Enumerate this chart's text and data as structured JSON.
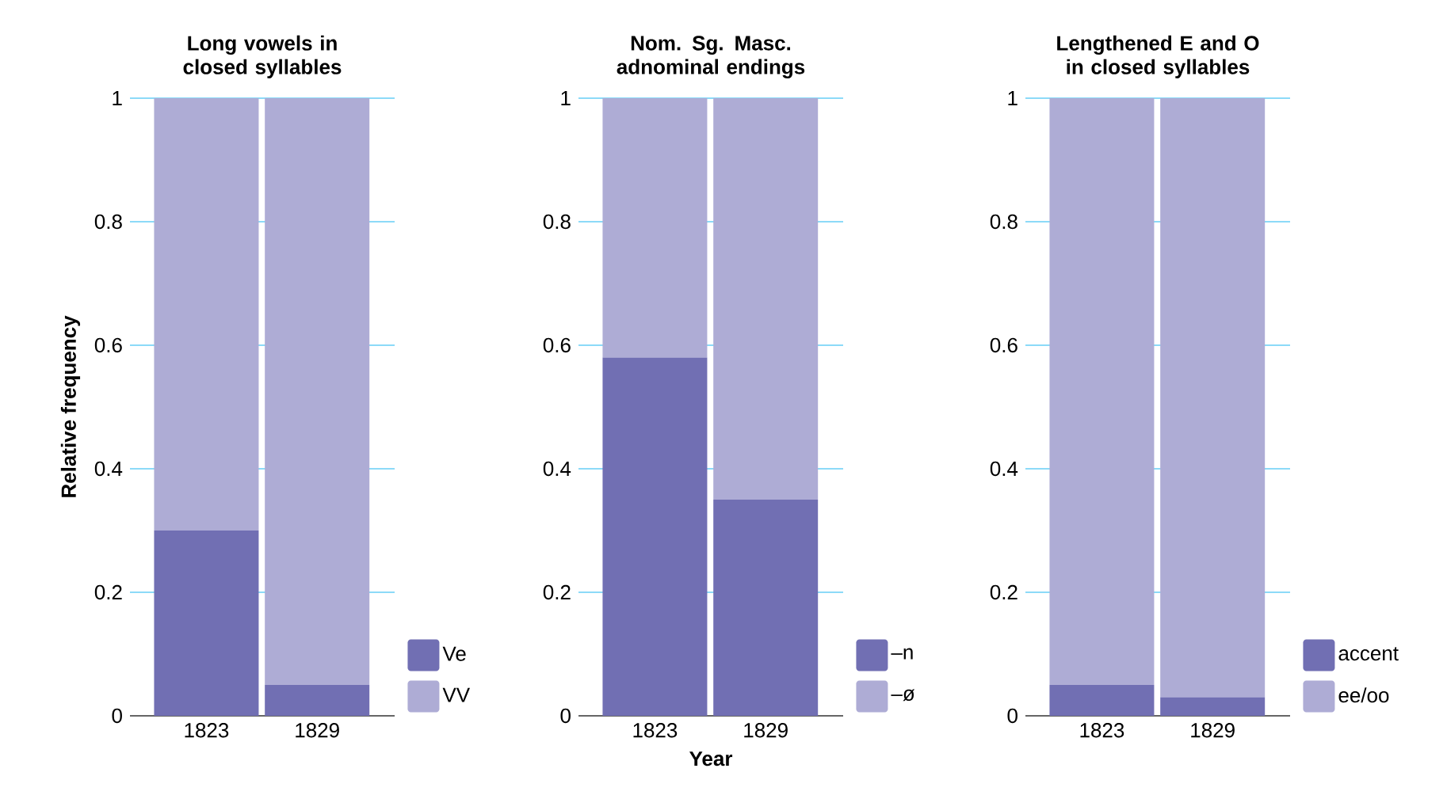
{
  "chart_data": [
    {
      "type": "bar",
      "title": "Long vowels in closed syllables",
      "ylabel": "Relative frequency",
      "categories": [
        "1823",
        "1829"
      ],
      "stacked": true,
      "ylim": [
        0,
        1
      ],
      "yticks": [
        0,
        0.2,
        0.4,
        0.6,
        0.8,
        1
      ],
      "grid": "y",
      "legend": "bottom right",
      "series": [
        {
          "name": "Ve",
          "color": "#716fb3",
          "values": [
            0.3,
            0.05
          ]
        },
        {
          "name": "VV",
          "color": "#aeacd5",
          "values": [
            0.7,
            0.95
          ]
        }
      ]
    },
    {
      "type": "bar",
      "title": "Nom. Sg. Masc. adnominal endings",
      "xlabel": "Year",
      "categories": [
        "1823",
        "1829"
      ],
      "stacked": true,
      "ylim": [
        0,
        1
      ],
      "yticks": [
        0,
        0.2,
        0.4,
        0.6,
        0.8,
        1
      ],
      "grid": "y",
      "legend": "bottom right",
      "series": [
        {
          "name": "–n",
          "color": "#716fb3",
          "values": [
            0.58,
            0.35
          ]
        },
        {
          "name": "–ø",
          "color": "#aeacd5",
          "values": [
            0.42,
            0.65
          ]
        }
      ]
    },
    {
      "type": "bar",
      "title": "Lengthened E and O in closed syllables",
      "categories": [
        "1823",
        "1829"
      ],
      "stacked": true,
      "ylim": [
        0,
        1
      ],
      "yticks": [
        0,
        0.2,
        0.4,
        0.6,
        0.8,
        1
      ],
      "grid": "y",
      "legend": "bottom right",
      "series": [
        {
          "name": "accent",
          "color": "#716fb3",
          "values": [
            0.05,
            0.03
          ]
        },
        {
          "name": "ee/oo",
          "color": "#aeacd5",
          "values": [
            0.95,
            0.97
          ]
        }
      ]
    }
  ]
}
